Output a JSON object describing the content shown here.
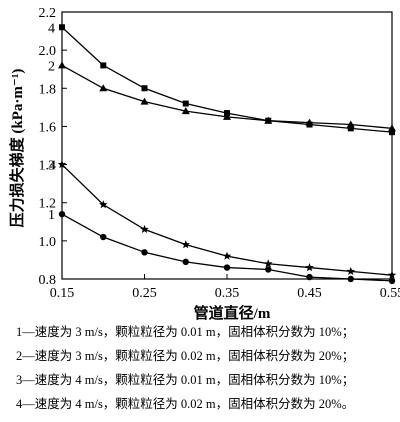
{
  "chart_data": {
    "type": "line",
    "xlabel": "管道直径/m",
    "ylabel": "压力损失梯度 (kPa·m⁻¹)",
    "xlim": [
      0.15,
      0.55
    ],
    "ylim": [
      0.8,
      2.2
    ],
    "xticks": [
      "0.15",
      "0.25",
      "0.35",
      "0.45",
      "0.55"
    ],
    "yticks": [
      "0.8",
      "1.0",
      "1.2",
      "1.4",
      "1.6",
      "1.8",
      "2.0",
      "2.2"
    ],
    "x": [
      0.15,
      0.2,
      0.25,
      0.3,
      0.35,
      0.4,
      0.45,
      0.5,
      0.55
    ],
    "series": [
      {
        "name": "1",
        "marker": "circle",
        "values": [
          1.14,
          1.02,
          0.94,
          0.89,
          0.86,
          0.85,
          0.81,
          0.8,
          0.79
        ]
      },
      {
        "name": "2",
        "marker": "triangle",
        "values": [
          1.92,
          1.8,
          1.73,
          1.68,
          1.65,
          1.63,
          1.62,
          1.61,
          1.59
        ]
      },
      {
        "name": "3",
        "marker": "star",
        "values": [
          1.4,
          1.19,
          1.06,
          0.98,
          0.92,
          0.88,
          0.86,
          0.84,
          0.82
        ]
      },
      {
        "name": "4",
        "marker": "square",
        "values": [
          2.12,
          1.92,
          1.8,
          1.72,
          1.67,
          1.63,
          1.61,
          1.59,
          1.57
        ]
      }
    ],
    "legend": [
      "1—速度为 3 m/s，颗粒粒径为 0.01 m，固相体积分数为 10%；",
      "2—速度为 3 m/s，颗粒粒径为 0.02 m，固相体积分数为 20%；",
      "3—速度为 4 m/s，颗粒粒径为 0.01 m，固相体积分数为 10%；",
      "4—速度为 4 m/s，颗粒粒径为 0.02 m，固相体积分数为 20%。"
    ]
  }
}
